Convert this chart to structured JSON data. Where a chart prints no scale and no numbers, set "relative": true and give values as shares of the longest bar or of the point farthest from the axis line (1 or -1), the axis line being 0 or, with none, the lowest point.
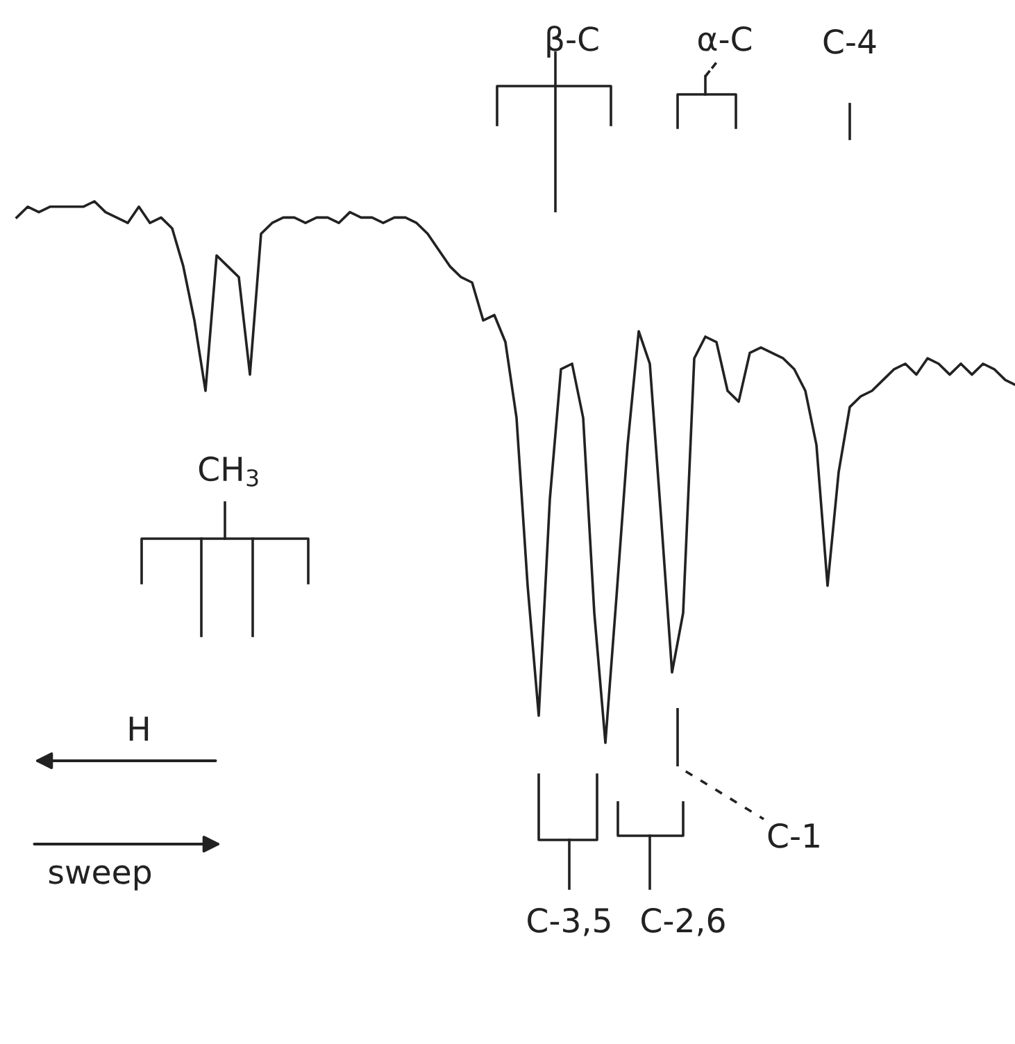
{
  "chart_data": {
    "type": "line",
    "relative": true,
    "categories": [
      null,
      null,
      null,
      null,
      null,
      null,
      null,
      null,
      null,
      null,
      null,
      null,
      null,
      null,
      null,
      null,
      null,
      null,
      null,
      null,
      null,
      null,
      null,
      null,
      null,
      null,
      null,
      null,
      null,
      null,
      null,
      null,
      null,
      null,
      null,
      null,
      null,
      null,
      null,
      null,
      null,
      null,
      null,
      null,
      null,
      null,
      null,
      null,
      null,
      null,
      null,
      null,
      null,
      null,
      null,
      null,
      null,
      null,
      null,
      null,
      null,
      null,
      null,
      null,
      null,
      null,
      null,
      null,
      null,
      null,
      null,
      null,
      null,
      null,
      null,
      null,
      null,
      null,
      null,
      null,
      null,
      null,
      null,
      null,
      null,
      null,
      null,
      null,
      null,
      null,
      null
    ],
    "series": [
      {
        "color": "#222222",
        "values": [
          0.97,
          0.99,
          0.98,
          0.99,
          0.99,
          0.99,
          0.99,
          1.0,
          0.98,
          0.97,
          0.96,
          0.99,
          0.96,
          0.97,
          0.95,
          0.88,
          0.78,
          0.65,
          0.9,
          0.88,
          0.86,
          0.68,
          0.94,
          0.96,
          0.97,
          0.97,
          0.96,
          0.97,
          0.97,
          0.96,
          0.98,
          0.97,
          0.97,
          0.96,
          0.97,
          0.97,
          0.96,
          0.94,
          0.91,
          0.88,
          0.86,
          0.85,
          0.78,
          0.79,
          0.74,
          0.6,
          0.29,
          0.05,
          0.45,
          0.69,
          0.7,
          0.6,
          0.24,
          0.0,
          0.27,
          0.55,
          0.76,
          0.7,
          0.42,
          0.13,
          0.24,
          0.71,
          0.75,
          0.74,
          0.65,
          0.63,
          0.72,
          0.73,
          0.72,
          0.71,
          0.69,
          0.65,
          0.55,
          0.29,
          0.5,
          0.62,
          0.64,
          0.65,
          0.67,
          0.69,
          0.7,
          0.68,
          0.71,
          0.7,
          0.68,
          0.7,
          0.68,
          0.7,
          0.69,
          0.67,
          0.66
        ]
      }
    ],
    "annotations": [
      "β-C",
      "α-C",
      "C-4",
      "CH$_{3}$",
      "H",
      "sweep",
      "C-1",
      "C-3,5",
      "C-2,6"
    ]
  }
}
